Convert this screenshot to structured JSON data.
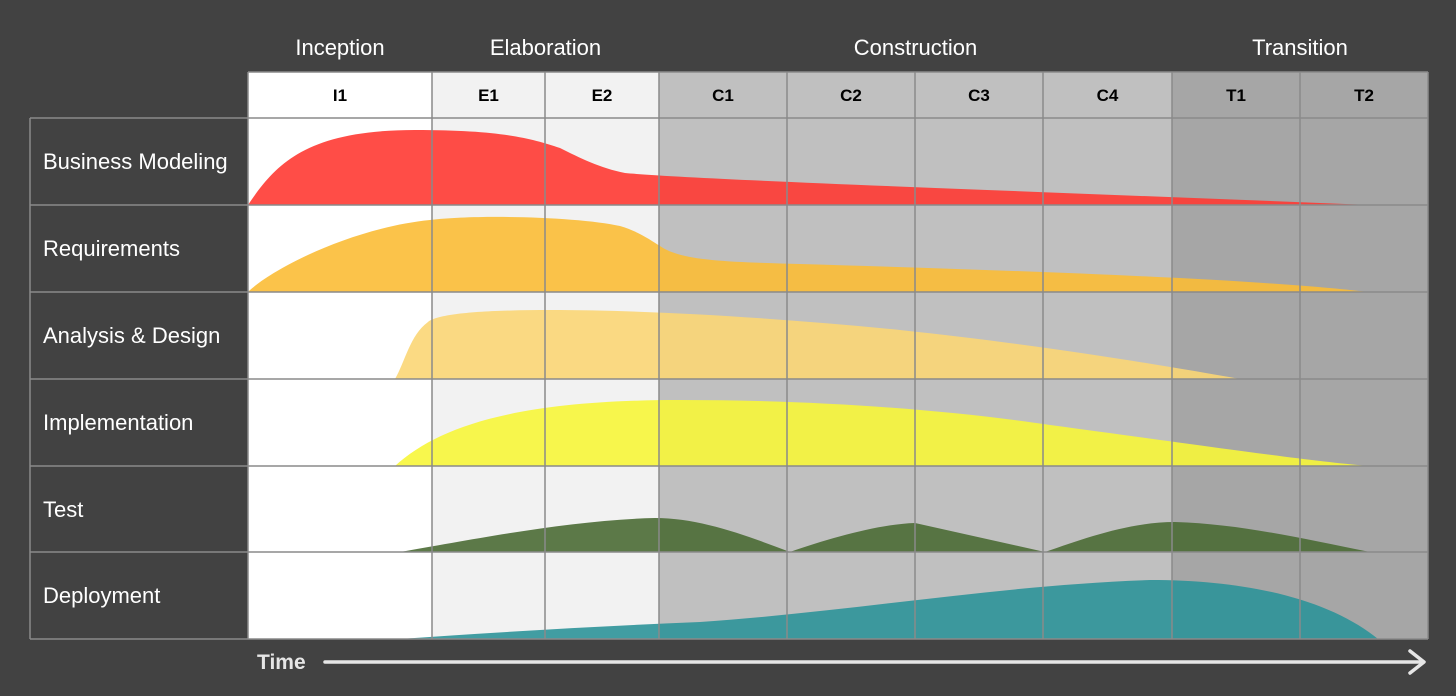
{
  "phases": [
    {
      "id": "inception",
      "label": "Inception"
    },
    {
      "id": "elaboration",
      "label": "Elaboration"
    },
    {
      "id": "construction",
      "label": "Construction"
    },
    {
      "id": "transition",
      "label": "Transition"
    }
  ],
  "iterations": [
    {
      "id": "i1",
      "label": "I1",
      "phase": "inception"
    },
    {
      "id": "e1",
      "label": "E1",
      "phase": "elaboration"
    },
    {
      "id": "e2",
      "label": "E2",
      "phase": "elaboration"
    },
    {
      "id": "c1",
      "label": "C1",
      "phase": "construction"
    },
    {
      "id": "c2",
      "label": "C2",
      "phase": "construction"
    },
    {
      "id": "c3",
      "label": "C3",
      "phase": "construction"
    },
    {
      "id": "c4",
      "label": "C4",
      "phase": "construction"
    },
    {
      "id": "t1",
      "label": "T1",
      "phase": "transition"
    },
    {
      "id": "t2",
      "label": "T2",
      "phase": "transition"
    }
  ],
  "disciplines": [
    {
      "id": "business-modeling",
      "label": "Business Modeling",
      "color": "#ff3a33"
    },
    {
      "id": "requirements",
      "label": "Requirements",
      "color": "#fbbd36"
    },
    {
      "id": "analysis-design",
      "label": "Analysis & Design",
      "color": "#fbd675"
    },
    {
      "id": "implementation",
      "label": "Implementation",
      "color": "#f7f63a"
    },
    {
      "id": "test",
      "label": "Test",
      "color": "#4b6b35"
    },
    {
      "id": "deployment",
      "label": "Deployment",
      "color": "#2e9499"
    }
  ],
  "axis": {
    "label": "Time"
  },
  "colors": {
    "background": "#424242",
    "inception_cell": "#ffffff",
    "elaboration_cell": "#f2f2f2",
    "construction_cell": "#c0c0c0",
    "transition_cell": "#a6a6a6",
    "grid_line": "#8a8a8a"
  }
}
